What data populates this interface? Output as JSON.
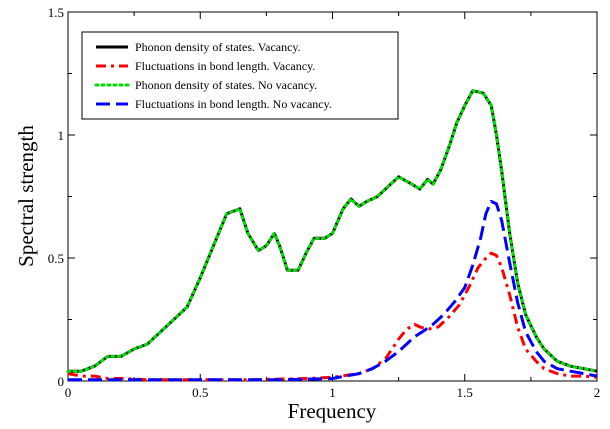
{
  "chart_data": {
    "type": "line",
    "xlabel": "Frequency",
    "ylabel": "Spectral strength",
    "xlim": [
      0,
      2
    ],
    "ylim": [
      0,
      1.5
    ],
    "x_ticks": [
      "0",
      "0.5",
      "1",
      "1.5",
      "2"
    ],
    "y_ticks": [
      "0",
      "0.5",
      "1",
      "1.5"
    ],
    "legend_position": "top-left",
    "series": [
      {
        "name": "Phonon density of states. Vacancy.",
        "color": "#000000",
        "style": "solid",
        "x": [
          0,
          0.05,
          0.1,
          0.15,
          0.2,
          0.25,
          0.3,
          0.35,
          0.4,
          0.45,
          0.5,
          0.55,
          0.6,
          0.65,
          0.68,
          0.72,
          0.75,
          0.78,
          0.8,
          0.83,
          0.87,
          0.9,
          0.93,
          0.97,
          1.0,
          1.04,
          1.07,
          1.1,
          1.13,
          1.17,
          1.2,
          1.25,
          1.3,
          1.33,
          1.36,
          1.38,
          1.41,
          1.44,
          1.47,
          1.5,
          1.53,
          1.57,
          1.6,
          1.62,
          1.64,
          1.67,
          1.7,
          1.73,
          1.77,
          1.8,
          1.85,
          1.9,
          1.95,
          2.0
        ],
        "values": [
          0.04,
          0.04,
          0.06,
          0.1,
          0.1,
          0.13,
          0.15,
          0.2,
          0.25,
          0.3,
          0.42,
          0.55,
          0.68,
          0.7,
          0.6,
          0.53,
          0.55,
          0.6,
          0.55,
          0.45,
          0.45,
          0.52,
          0.58,
          0.58,
          0.6,
          0.7,
          0.74,
          0.71,
          0.73,
          0.75,
          0.78,
          0.83,
          0.8,
          0.78,
          0.82,
          0.8,
          0.86,
          0.95,
          1.05,
          1.12,
          1.18,
          1.17,
          1.12,
          1.0,
          0.85,
          0.6,
          0.4,
          0.27,
          0.18,
          0.13,
          0.08,
          0.06,
          0.05,
          0.04
        ]
      },
      {
        "name": "Fluctuations in bond length. Vacancy.",
        "color": "#ff0000",
        "style": "dash-dot",
        "x": [
          0,
          0.05,
          0.1,
          0.15,
          0.2,
          0.3,
          0.5,
          0.7,
          0.9,
          1.0,
          1.1,
          1.15,
          1.2,
          1.25,
          1.28,
          1.31,
          1.33,
          1.36,
          1.4,
          1.44,
          1.48,
          1.52,
          1.55,
          1.58,
          1.6,
          1.62,
          1.64,
          1.67,
          1.7,
          1.73,
          1.77,
          1.8,
          1.85,
          1.9,
          1.95,
          2.0
        ],
        "values": [
          0.03,
          0.02,
          0.02,
          0.01,
          0.01,
          0.005,
          0.005,
          0.005,
          0.01,
          0.015,
          0.03,
          0.05,
          0.09,
          0.17,
          0.21,
          0.23,
          0.22,
          0.21,
          0.22,
          0.26,
          0.31,
          0.39,
          0.46,
          0.5,
          0.52,
          0.51,
          0.46,
          0.35,
          0.22,
          0.13,
          0.08,
          0.05,
          0.03,
          0.02,
          0.02,
          0.015
        ]
      },
      {
        "name": "Phonon density of states.  No vacancy.",
        "color": "#00dd00",
        "style": "dotted",
        "x": [
          0,
          0.05,
          0.1,
          0.15,
          0.2,
          0.25,
          0.3,
          0.35,
          0.4,
          0.45,
          0.5,
          0.55,
          0.6,
          0.65,
          0.68,
          0.72,
          0.75,
          0.78,
          0.8,
          0.83,
          0.87,
          0.9,
          0.93,
          0.97,
          1.0,
          1.04,
          1.07,
          1.1,
          1.13,
          1.17,
          1.2,
          1.25,
          1.3,
          1.33,
          1.36,
          1.38,
          1.41,
          1.44,
          1.47,
          1.5,
          1.53,
          1.57,
          1.6,
          1.62,
          1.64,
          1.67,
          1.7,
          1.73,
          1.77,
          1.8,
          1.85,
          1.9,
          1.95,
          2.0
        ],
        "values": [
          0.04,
          0.04,
          0.06,
          0.1,
          0.1,
          0.13,
          0.15,
          0.2,
          0.25,
          0.3,
          0.42,
          0.55,
          0.68,
          0.7,
          0.6,
          0.53,
          0.55,
          0.6,
          0.55,
          0.45,
          0.45,
          0.52,
          0.58,
          0.58,
          0.6,
          0.7,
          0.74,
          0.71,
          0.73,
          0.75,
          0.78,
          0.83,
          0.8,
          0.78,
          0.82,
          0.8,
          0.86,
          0.95,
          1.05,
          1.12,
          1.18,
          1.17,
          1.12,
          1.0,
          0.85,
          0.6,
          0.4,
          0.27,
          0.18,
          0.13,
          0.08,
          0.06,
          0.05,
          0.04
        ]
      },
      {
        "name": "Fluctuations in bond length. No vacancy.",
        "color": "#0000ff",
        "style": "dashed",
        "x": [
          0,
          0.2,
          0.4,
          0.6,
          0.8,
          1.0,
          1.1,
          1.15,
          1.2,
          1.25,
          1.28,
          1.31,
          1.34,
          1.38,
          1.42,
          1.46,
          1.5,
          1.53,
          1.56,
          1.58,
          1.6,
          1.62,
          1.64,
          1.67,
          1.7,
          1.73,
          1.77,
          1.8,
          1.85,
          1.9,
          1.95,
          2.0
        ],
        "values": [
          0.005,
          0.005,
          0.005,
          0.005,
          0.005,
          0.01,
          0.03,
          0.05,
          0.08,
          0.12,
          0.15,
          0.18,
          0.2,
          0.23,
          0.27,
          0.32,
          0.38,
          0.47,
          0.58,
          0.68,
          0.73,
          0.72,
          0.65,
          0.48,
          0.32,
          0.2,
          0.12,
          0.08,
          0.05,
          0.04,
          0.03,
          0.02
        ]
      }
    ]
  }
}
